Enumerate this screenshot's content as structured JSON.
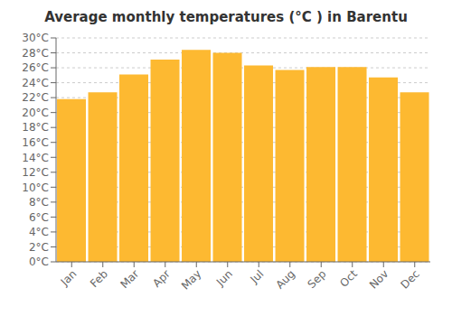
{
  "chart_data": {
    "type": "bar",
    "title": "Average monthly temperatures (°C ) in Barentu",
    "categories": [
      "Jan",
      "Feb",
      "Mar",
      "Apr",
      "May",
      "Jun",
      "Jul",
      "Aug",
      "Sep",
      "Oct",
      "Nov",
      "Dec"
    ],
    "values": [
      21.8,
      22.7,
      25.1,
      27.1,
      28.4,
      28.0,
      26.3,
      25.7,
      26.1,
      26.1,
      24.7,
      22.7
    ],
    "color": "#FDB931",
    "ylim": [
      0,
      30
    ],
    "yticks": [
      {
        "value": 0,
        "label": "0°C"
      },
      {
        "value": 2,
        "label": "2°C"
      },
      {
        "value": 4,
        "label": "4°C"
      },
      {
        "value": 6,
        "label": "6°C"
      },
      {
        "value": 8,
        "label": "8°C"
      },
      {
        "value": 10,
        "label": "10°C"
      },
      {
        "value": 12,
        "label": "12°C"
      },
      {
        "value": 14,
        "label": "14°C"
      },
      {
        "value": 16,
        "label": "16°C"
      },
      {
        "value": 18,
        "label": "18°C"
      },
      {
        "value": 20,
        "label": "20°C"
      },
      {
        "value": 22,
        "label": "22°C"
      },
      {
        "value": 24,
        "label": "24°C"
      },
      {
        "value": 26,
        "label": "26°C"
      },
      {
        "value": 28,
        "label": "28°C"
      },
      {
        "value": 30,
        "label": "30°C"
      }
    ],
    "grid": true
  }
}
